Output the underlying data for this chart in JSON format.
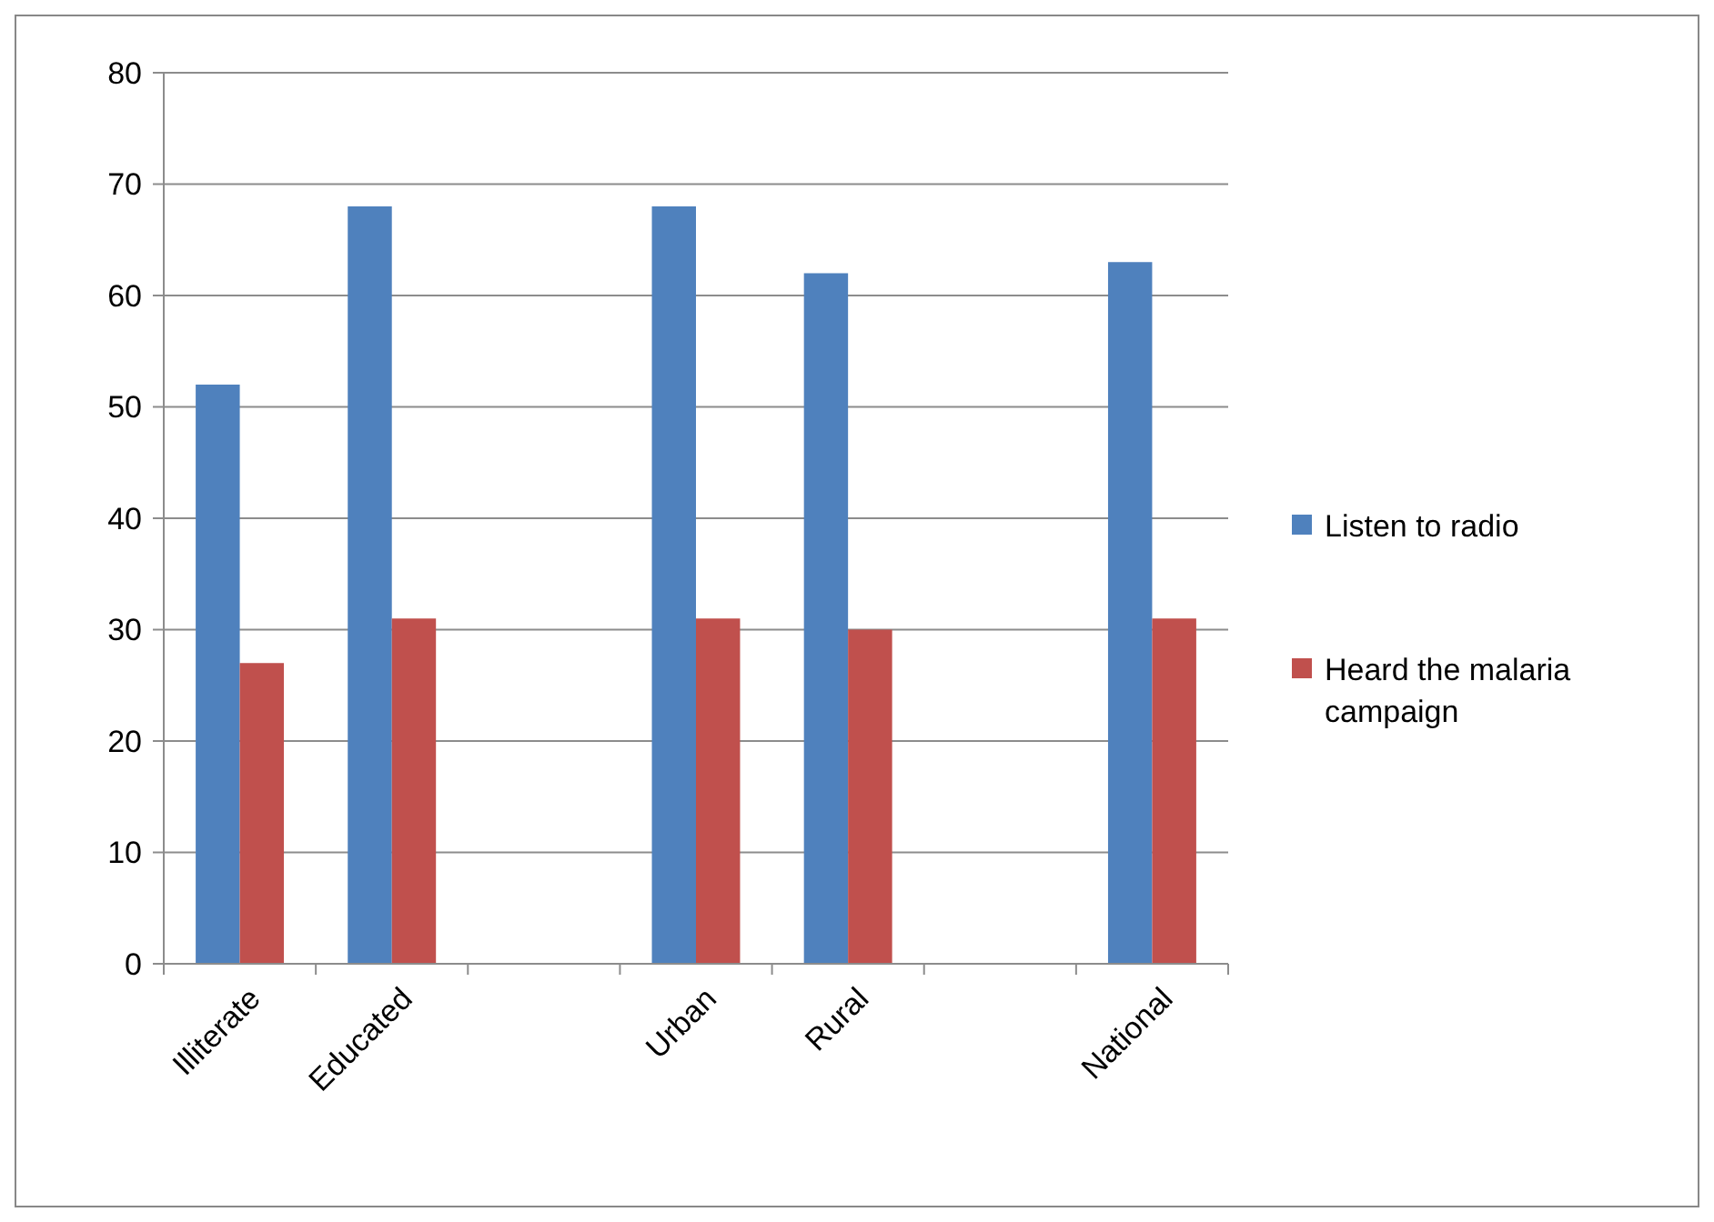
{
  "chart_data": {
    "type": "bar",
    "categories": [
      "Illiterate",
      "Educated",
      null,
      "Urban",
      "Rural",
      null,
      "National"
    ],
    "series": [
      {
        "name": "Listen to radio",
        "color": "#4f81bd",
        "values": [
          52,
          68,
          null,
          68,
          62,
          null,
          63
        ]
      },
      {
        "name": "Heard the malaria campaign",
        "color": "#c0504d",
        "values": [
          27,
          31,
          null,
          31,
          30,
          null,
          31
        ]
      }
    ],
    "ylim": [
      0,
      80
    ],
    "yticks": [
      0,
      10,
      20,
      30,
      40,
      50,
      60,
      70,
      80
    ],
    "grid": "y",
    "legend": "right"
  }
}
